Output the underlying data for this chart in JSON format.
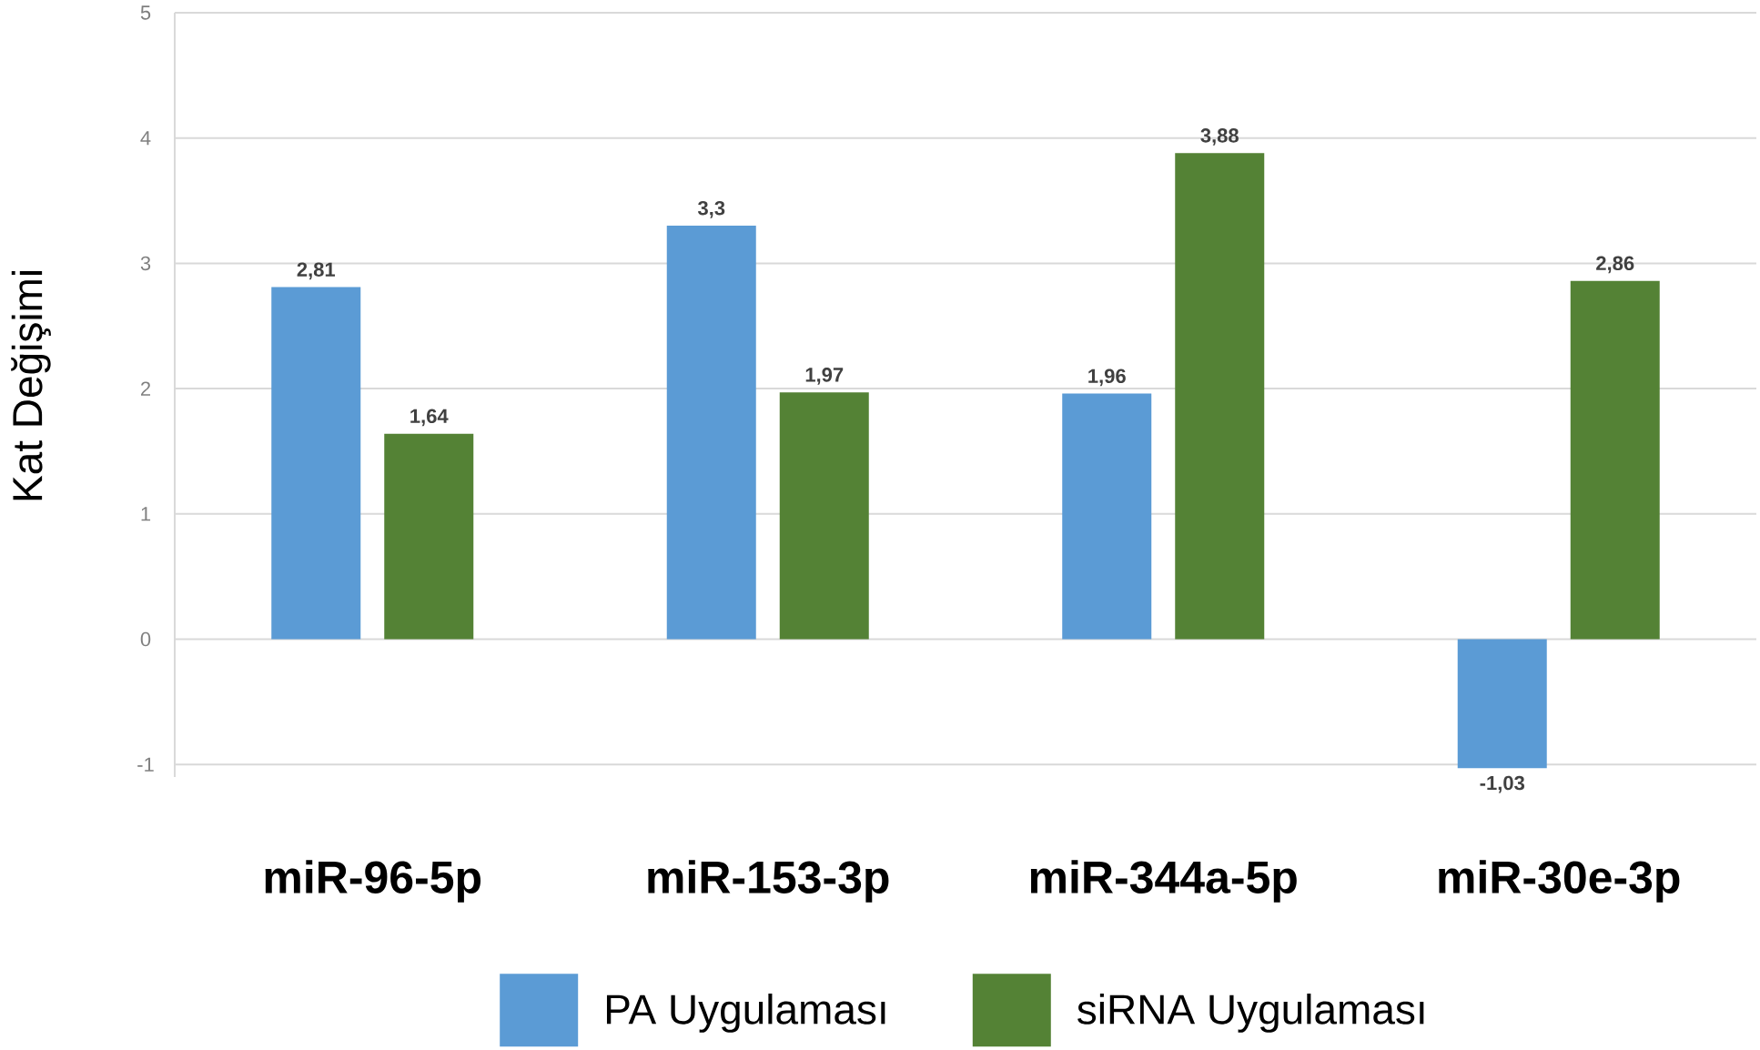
{
  "chart_data": {
    "type": "bar",
    "ylabel": "Kat Değişimi",
    "categories": [
      "miR-96-5p",
      "miR-153-3p",
      "miR-344a-5p",
      "miR-30e-3p"
    ],
    "series": [
      {
        "name": "PA Uygulaması",
        "color": "#5b9bd5",
        "values": [
          2.81,
          3.3,
          1.96,
          -1.03
        ],
        "value_labels": [
          "2,81",
          "3,3",
          "1,96",
          "-1,03"
        ]
      },
      {
        "name": "siRNA Uygulaması",
        "color": "#548235",
        "values": [
          1.64,
          1.97,
          3.88,
          2.86
        ],
        "value_labels": [
          "1,64",
          "1,97",
          "3,88",
          "2,86"
        ]
      }
    ],
    "ylim": [
      -1.1,
      5
    ],
    "yticks": [
      -1,
      0,
      1,
      2,
      3,
      4,
      5
    ],
    "grid": "y",
    "legend": "bottom"
  }
}
